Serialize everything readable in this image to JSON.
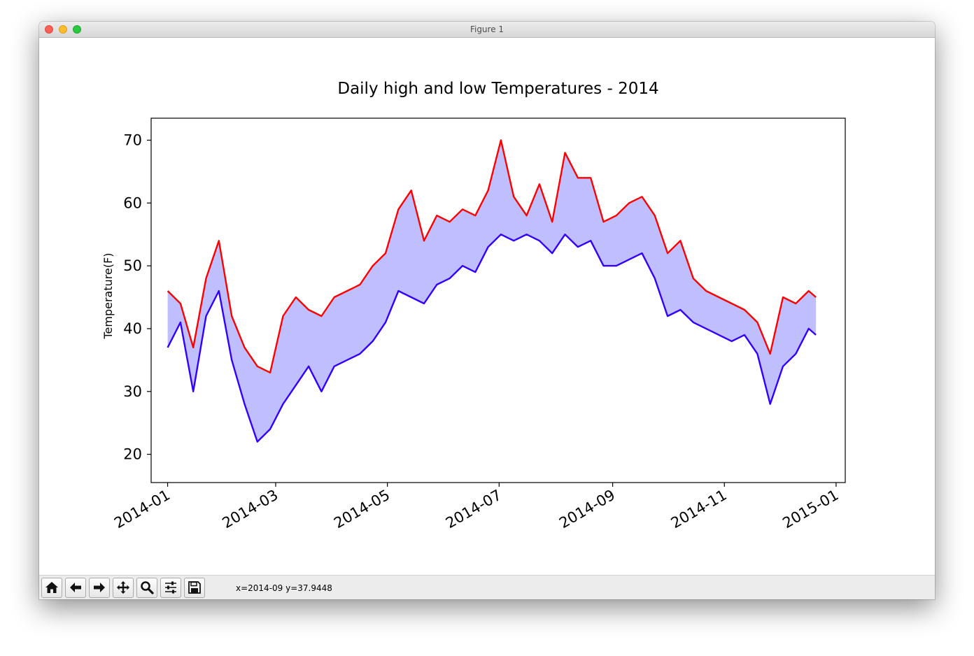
{
  "window": {
    "title": "Figure 1"
  },
  "toolbar": {
    "buttons": [
      {
        "icon": "home-icon"
      },
      {
        "icon": "back-arrow-icon"
      },
      {
        "icon": "forward-arrow-icon"
      },
      {
        "icon": "pan-icon"
      },
      {
        "icon": "zoom-icon"
      },
      {
        "icon": "subplots-icon"
      },
      {
        "icon": "save-icon"
      }
    ],
    "coords": "x=2014-09 y=37.9448"
  },
  "chart_data": {
    "type": "line",
    "title": "Daily high and low Temperatures - 2014",
    "xlabel": "",
    "ylabel": "Temperature(F)",
    "ylim": [
      15.5,
      73.5
    ],
    "xlim": [
      "2013-12-23",
      "2015-01-06"
    ],
    "yticks": [
      20,
      30,
      40,
      50,
      60,
      70
    ],
    "xticks": [
      "2014-01-01",
      "2014-03-01",
      "2014-05-01",
      "2014-07-01",
      "2014-09-01",
      "2014-11-01",
      "2015-01-01"
    ],
    "xtick_labels": [
      "2014-01",
      "2014-03",
      "2014-05",
      "2014-07",
      "2014-09",
      "2014-11",
      "2015-01"
    ],
    "x": [
      "2014-01-01",
      "2014-01-08",
      "2014-01-15",
      "2014-01-22",
      "2014-01-29",
      "2014-02-05",
      "2014-02-12",
      "2014-02-19",
      "2014-02-26",
      "2014-03-05",
      "2014-03-12",
      "2014-03-19",
      "2014-03-26",
      "2014-04-02",
      "2014-04-09",
      "2014-04-16",
      "2014-04-23",
      "2014-04-30",
      "2014-05-07",
      "2014-05-14",
      "2014-05-21",
      "2014-05-28",
      "2014-06-04",
      "2014-06-11",
      "2014-06-18",
      "2014-06-25",
      "2014-07-02",
      "2014-07-09",
      "2014-07-16",
      "2014-07-23",
      "2014-07-30",
      "2014-08-06",
      "2014-08-13",
      "2014-08-20",
      "2014-08-27",
      "2014-09-03",
      "2014-09-10",
      "2014-09-17",
      "2014-09-24",
      "2014-10-01",
      "2014-10-08",
      "2014-10-15",
      "2014-10-22",
      "2014-10-29",
      "2014-11-05",
      "2014-11-12",
      "2014-11-19",
      "2014-11-26",
      "2014-12-03",
      "2014-12-10",
      "2014-12-17",
      "2014-12-21"
    ],
    "fill_color": "#bfbfff",
    "series": [
      {
        "color": "#ff0000",
        "values": [
          46,
          44,
          37,
          48,
          54,
          42,
          37,
          34,
          33,
          42,
          45,
          43,
          42,
          45,
          46,
          47,
          50,
          52,
          59,
          62,
          54,
          58,
          57,
          59,
          58,
          62,
          70,
          61,
          58,
          63,
          57,
          68,
          64,
          64,
          57,
          58,
          60,
          61,
          58,
          52,
          54,
          48,
          46,
          45,
          44,
          43,
          41,
          36,
          45,
          44,
          46,
          45
        ]
      },
      {
        "color": "#3300ff",
        "values": [
          37,
          41,
          30,
          42,
          46,
          35,
          28,
          22,
          24,
          28,
          31,
          34,
          30,
          34,
          35,
          36,
          38,
          41,
          46,
          45,
          44,
          47,
          48,
          50,
          49,
          53,
          55,
          54,
          55,
          54,
          52,
          55,
          53,
          54,
          50,
          50,
          51,
          52,
          48,
          42,
          43,
          41,
          40,
          39,
          38,
          39,
          36,
          28,
          34,
          36,
          40,
          39
        ]
      }
    ]
  }
}
